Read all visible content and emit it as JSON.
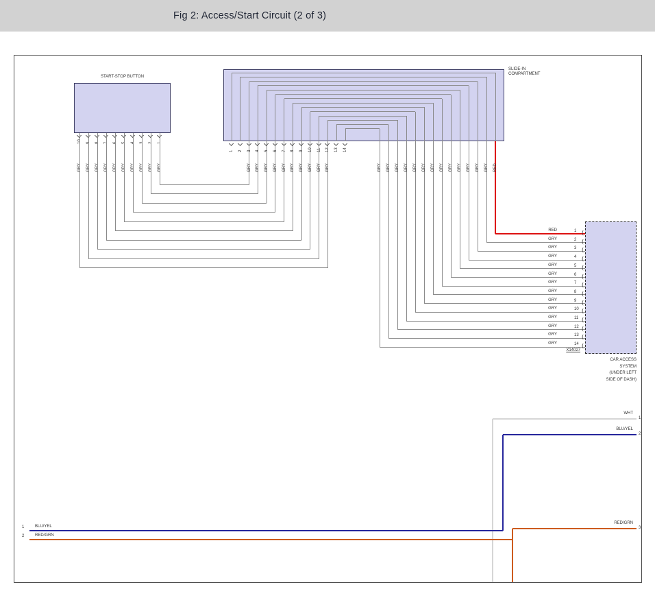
{
  "header": {
    "title": "Fig 2: Access/Start Circuit (2 of 3)"
  },
  "colors": {
    "header_bg": "#d2d2d2",
    "component_fill": "#d3d3f0",
    "component_border": "#3f3f66",
    "wire_gry": "#8a8a8a",
    "wire_red": "#dd1111",
    "wire_blu_yel": "#26269c",
    "wire_red_grn": "#cd5b1e",
    "wire_wht": "#d6d6d6"
  },
  "start_stop_button": {
    "label": "START-STOP BUTTON",
    "pins": [
      "10",
      "9",
      "8",
      "7",
      "6",
      "5",
      "4",
      "3",
      "2",
      "1"
    ],
    "wire_labels": [
      "GRY",
      "GRY",
      "GRY",
      "GRY",
      "GRY",
      "GRY",
      "GRY",
      "GRY",
      "GRY",
      "GRY"
    ]
  },
  "slide_in_compartment": {
    "label_lines": [
      "SLIDE-IN",
      "COMPARTMENT"
    ],
    "pins": [
      "1",
      "2",
      "3",
      "4",
      "5",
      "6",
      "7",
      "8",
      "9",
      "10",
      "11",
      "12",
      "13",
      "14"
    ],
    "left_wire_labels": [
      "GRY",
      "GRY",
      "GRY",
      "GRY",
      "GRY",
      "GRY",
      "GRY",
      "GRY",
      "GRY",
      "GRY"
    ],
    "right_wire_labels": [
      "GRY",
      "GRY",
      "GRY",
      "GRY",
      "GRY",
      "GRY",
      "GRY",
      "GRY",
      "GRY",
      "GRY",
      "GRY",
      "GRY",
      "GRY",
      "RED"
    ]
  },
  "car_access_system": {
    "connector_id": "X14027",
    "label_lines": [
      "CAR ACCESS",
      "SYSTEM",
      "(UNDER LEFT",
      "SIDE OF DASH)"
    ],
    "pins": [
      {
        "num": "1",
        "wire": "RED"
      },
      {
        "num": "2",
        "wire": "GRY"
      },
      {
        "num": "3",
        "wire": "GRY"
      },
      {
        "num": "4",
        "wire": "GRY"
      },
      {
        "num": "5",
        "wire": "GRY"
      },
      {
        "num": "6",
        "wire": "GRY"
      },
      {
        "num": "7",
        "wire": "GRY"
      },
      {
        "num": "8",
        "wire": "GRY"
      },
      {
        "num": "9",
        "wire": "GRY"
      },
      {
        "num": "10",
        "wire": "GRY"
      },
      {
        "num": "11",
        "wire": "GRY"
      },
      {
        "num": "12",
        "wire": "GRY"
      },
      {
        "num": "13",
        "wire": "GRY"
      },
      {
        "num": "14",
        "wire": "GRY"
      }
    ]
  },
  "bottom_left_connector": {
    "pins": [
      {
        "num": "1",
        "wire": "BLU/YEL"
      },
      {
        "num": "2",
        "wire": "RED/GRN"
      }
    ]
  },
  "bottom_right_connector": {
    "pins": [
      {
        "num": "1",
        "wire": "WHT"
      },
      {
        "num": "2",
        "wire": "BLU/YEL"
      },
      {
        "num": "3",
        "wire": "RED/GRN"
      }
    ]
  }
}
